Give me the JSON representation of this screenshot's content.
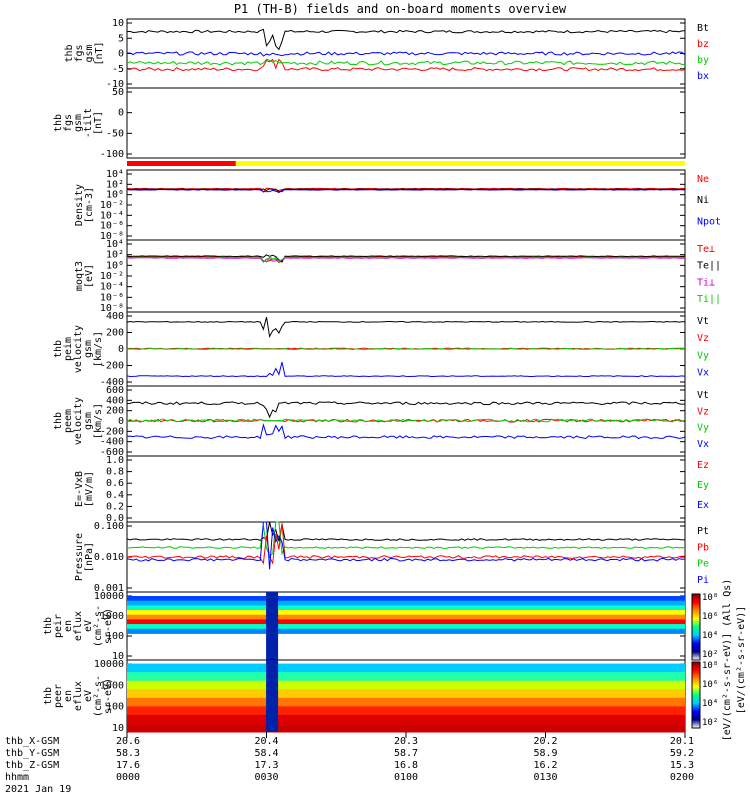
{
  "title": "P1 (TH-B) fields and on-board moments overview",
  "panels": [
    {
      "id": "fgs",
      "ylabel": [
        "thb",
        "fgs",
        "gsm",
        "[nT]"
      ],
      "type": "line",
      "ticks": [
        "10",
        "5",
        "0",
        "-5",
        "-10"
      ],
      "ylim": [
        -10,
        12
      ],
      "series": [
        {
          "name": "Bt",
          "color": "#000000",
          "base": 8,
          "noise": 0.4
        },
        {
          "name": "bz",
          "color": "#ff0000",
          "base": -4,
          "noise": 0.5
        },
        {
          "name": "by",
          "color": "#00cc00",
          "base": -2,
          "noise": 0.6
        },
        {
          "name": "bx",
          "color": "#0000ff",
          "base": 1,
          "noise": 0.5
        }
      ]
    },
    {
      "id": "fgs_tilt",
      "ylabel": [
        "thb",
        "fgs",
        "gsm",
        "-tilt",
        "[nT]"
      ],
      "type": "empty",
      "ticks": [
        "50",
        "0",
        "-50",
        "-100"
      ],
      "ylim": [
        -130,
        70
      ],
      "series": []
    },
    {
      "id": "density",
      "ylabel": [
        "Density",
        "[cm-3]"
      ],
      "type": "line",
      "ticks": [
        "10⁴",
        "10²",
        "10⁰",
        "10⁻²",
        "10⁻⁴",
        "10⁻⁶",
        "10⁻⁸"
      ],
      "ylim": [
        -8,
        4
      ],
      "series": [
        {
          "name": "Ne",
          "color": "#ff0000",
          "base": 0.8,
          "noise": 0.05
        },
        {
          "name": "Ni",
          "color": "#000000",
          "base": 0.7,
          "noise": 0.05
        },
        {
          "name": "Npot",
          "color": "#0000ff",
          "base": 0.6,
          "noise": 0.05
        }
      ]
    },
    {
      "id": "temperature",
      "ylabel": [
        "moqt3",
        "[eV]"
      ],
      "type": "line",
      "ticks": [
        "10⁴",
        "10²",
        "10⁰",
        "10⁻²",
        "10⁻⁴",
        "10⁻⁶",
        "10⁻⁸"
      ],
      "ylim": [
        -8,
        4
      ],
      "series": [
        {
          "name": "Te⊥",
          "color": "#ff0000",
          "base": 1.2,
          "noise": 0.05
        },
        {
          "name": "Te||",
          "color": "#000000",
          "base": 1.3,
          "noise": 0.05
        },
        {
          "name": "Ti⊥",
          "color": "#cc00cc",
          "base": 1.0,
          "noise": 0.05
        },
        {
          "name": "Ti||",
          "color": "#00cc00",
          "base": 1.1,
          "noise": 0.05
        }
      ]
    },
    {
      "id": "peim",
      "ylabel": [
        "thb",
        "peim",
        "velocity",
        "gsm",
        "[km/s]"
      ],
      "type": "line",
      "ticks": [
        "400",
        "200",
        "0",
        "-200",
        "-400"
      ],
      "ylim": [
        -450,
        450
      ],
      "series": [
        {
          "name": "Vt",
          "color": "#000000",
          "base": 330,
          "noise": 5
        },
        {
          "name": "Vz",
          "color": "#ff0000",
          "base": 5,
          "noise": 6
        },
        {
          "name": "Vy",
          "color": "#00cc00",
          "base": 0,
          "noise": 6
        },
        {
          "name": "Vx",
          "color": "#0000ff",
          "base": -330,
          "noise": 5
        }
      ]
    },
    {
      "id": "peem",
      "ylabel": [
        "thb",
        "peem",
        "velocity",
        "gsm",
        "[km/s]"
      ],
      "type": "line",
      "ticks": [
        "600",
        "400",
        "200",
        "0",
        "-200",
        "-400",
        "-600"
      ],
      "ylim": [
        -650,
        650
      ],
      "series": [
        {
          "name": "Vt",
          "color": "#000000",
          "base": 330,
          "noise": 25
        },
        {
          "name": "Vz",
          "color": "#ff0000",
          "base": 5,
          "noise": 25
        },
        {
          "name": "Vy",
          "color": "#00cc00",
          "base": 10,
          "noise": 25
        },
        {
          "name": "Vx",
          "color": "#0000ff",
          "base": -300,
          "noise": 25
        }
      ]
    },
    {
      "id": "efield",
      "ylabel": [
        "E=-VxB",
        "[mV/m]"
      ],
      "type": "empty",
      "ticks": [
        "1.0",
        "0.8",
        "0.6",
        "0.4",
        "0.2",
        "0.0"
      ],
      "ylim": [
        0,
        1.1
      ],
      "series": [
        {
          "name": "Ez",
          "color": "#ff0000"
        },
        {
          "name": "Ey",
          "color": "#00cc00"
        },
        {
          "name": "Ex",
          "color": "#0000ff"
        }
      ]
    },
    {
      "id": "pressure",
      "ylabel": [
        "Pressure",
        "[nPa]"
      ],
      "type": "line",
      "ticks": [
        "0.100",
        "0.010",
        "0.001"
      ],
      "ylim": [
        -3.2,
        -0.6
      ],
      "series": [
        {
          "name": "Pt",
          "color": "#000000",
          "base": -1.25,
          "noise": 0.03
        },
        {
          "name": "Pb",
          "color": "#ff0000",
          "base": -1.9,
          "noise": 0.05
        },
        {
          "name": "Pe",
          "color": "#00cc00",
          "base": -1.55,
          "noise": 0.03
        },
        {
          "name": "Pi",
          "color": "#0000ff",
          "base": -2.0,
          "noise": 0.05
        }
      ]
    },
    {
      "id": "peir",
      "ylabel": [
        "thb",
        "peir",
        "en",
        "eflux",
        "eV",
        "(cm²-s-",
        "sr-eV)"
      ],
      "type": "spectrogram",
      "ticks": [
        "10000",
        "1000",
        "100",
        "10"
      ],
      "ylim": [
        0.5,
        4.3
      ],
      "series": []
    },
    {
      "id": "peer",
      "ylabel": [
        "thb",
        "peer",
        "en",
        "eflux",
        "eV",
        "(cm²-s-",
        "sr-eV)"
      ],
      "type": "spectrogram",
      "ticks": [
        "10000",
        "1000",
        "100",
        "10"
      ],
      "ylim": [
        0.7,
        4.3
      ],
      "series": []
    }
  ],
  "colorbar": {
    "upper_ticks": [
      "10⁸",
      "10⁶",
      "10⁴",
      "10²"
    ],
    "lower_ticks": [
      "10⁸",
      "10⁶",
      "10⁴",
      "10²"
    ],
    "label": "[eV/(cm²-s-sr-eV)] (All Qs)",
    "label2": "[eV/(cm²-s-sr-eV)]"
  },
  "mode_bar": {
    "first_color": "#ff0000",
    "second_color": "#ffff00",
    "switch_fraction": 0.195
  },
  "x_axis": {
    "row_labels": [
      "thb_X-GSM",
      "thb_Y-GSM",
      "thb_Z-GSM",
      "hhmm",
      "2021 Jan 19"
    ],
    "ticks": [
      {
        "frac": 0.0,
        "X": "20.6",
        "Y": "58.3",
        "Z": "17.6",
        "T": "0000"
      },
      {
        "frac": 0.25,
        "X": "20.4",
        "Y": "58.4",
        "Z": "17.3",
        "T": "0030"
      },
      {
        "frac": 0.5,
        "X": "20.3",
        "Y": "58.7",
        "Z": "16.8",
        "T": "0100"
      },
      {
        "frac": 0.75,
        "X": "20.2",
        "Y": "58.9",
        "Z": "16.2",
        "T": "0130"
      },
      {
        "frac": 1.0,
        "X": "20.1",
        "Y": "59.2",
        "Z": "15.3",
        "T": "0200"
      }
    ]
  },
  "chart_data": {
    "type": "line",
    "title": "P1 (TH-B) fields and on-board moments overview",
    "x": [
      "0000",
      "0030",
      "0100",
      "0130",
      "0200"
    ],
    "series": [
      {
        "name": "Bt",
        "values": [
          8,
          8,
          8,
          8,
          8
        ]
      },
      {
        "name": "bz",
        "values": [
          -4,
          -4,
          -4,
          -3,
          -4
        ]
      },
      {
        "name": "by",
        "values": [
          -2,
          -2,
          -2,
          -2,
          -3
        ]
      },
      {
        "name": "bx",
        "values": [
          1,
          2,
          1,
          1,
          -1
        ]
      },
      {
        "name": "Vt",
        "values": [
          330,
          330,
          330,
          330,
          330
        ]
      },
      {
        "name": "Vx",
        "values": [
          -330,
          -330,
          -330,
          -330,
          -330
        ]
      }
    ]
  }
}
